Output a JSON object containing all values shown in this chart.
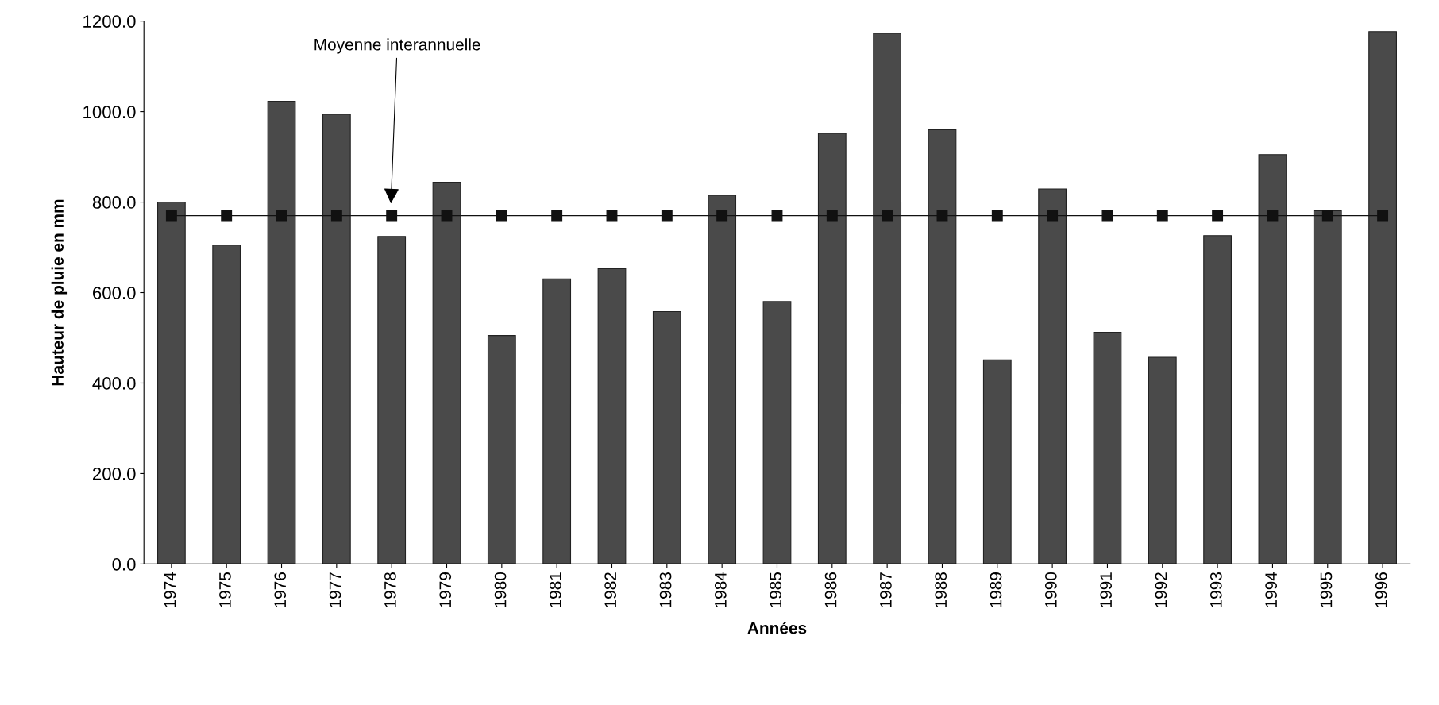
{
  "chart_data": {
    "type": "bar",
    "xlabel": "Années",
    "ylabel": "Hauteur de pluie en mm",
    "categories": [
      "1974",
      "1975",
      "1976",
      "1977",
      "1978",
      "1979",
      "1980",
      "1981",
      "1982",
      "1983",
      "1984",
      "1985",
      "1986",
      "1987",
      "1988",
      "1989",
      "1990",
      "1991",
      "1992",
      "1993",
      "1994",
      "1995",
      "1996"
    ],
    "series": [
      {
        "color": "#4a4a4a",
        "values": [
          800,
          705,
          1023,
          994,
          724,
          844,
          505,
          630,
          653,
          558,
          815,
          580,
          952,
          1173,
          960,
          451,
          829,
          512,
          457,
          726,
          905,
          781,
          1177
        ]
      },
      {
        "type": "line",
        "color": "#111111",
        "marker": "square",
        "line_style": "solid",
        "values": [
          770,
          770,
          770,
          770,
          770,
          770,
          770,
          770,
          770,
          770,
          770,
          770,
          770,
          770,
          770,
          770,
          770,
          770,
          770,
          770,
          770,
          770,
          770
        ]
      }
    ],
    "ylim": [
      0,
      1200
    ],
    "yticks": [
      {
        "value": 0,
        "label": "0.0"
      },
      {
        "value": 200,
        "label": "200.0"
      },
      {
        "value": 400,
        "label": "400.0"
      },
      {
        "value": 600,
        "label": "600.0"
      },
      {
        "value": 800,
        "label": "800.0"
      },
      {
        "value": 1000,
        "label": "1000.0"
      },
      {
        "value": 1200,
        "label": "1200.0"
      }
    ],
    "annotations": [
      "Moyenne interannuelle"
    ],
    "grid": false,
    "legend": false
  }
}
